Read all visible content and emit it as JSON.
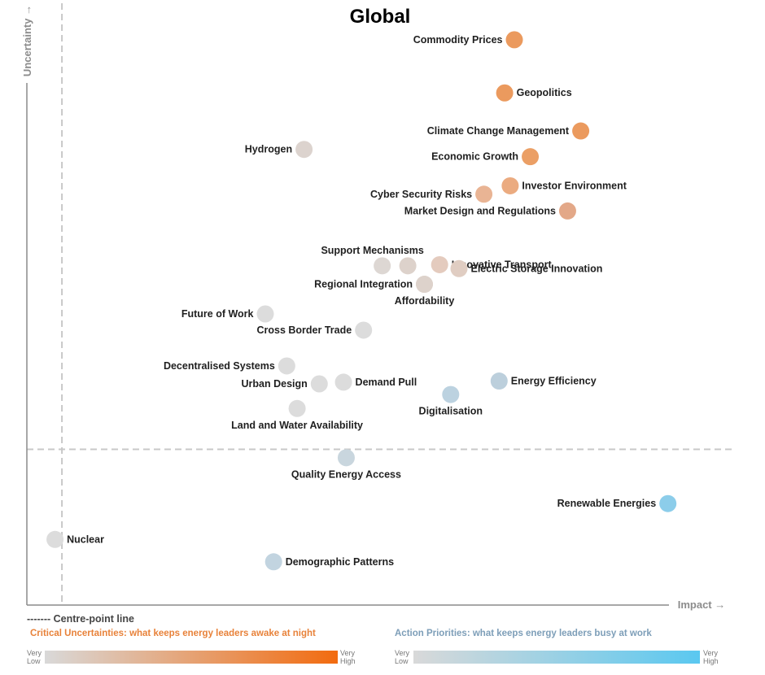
{
  "colors": {
    "critical_accent": "#E8823A",
    "action_accent": "#7D9EB8",
    "axis": "#8c8c8c",
    "centre_line": "#c8c8c8",
    "critical_low": "#d9d9d9",
    "critical_high": "#f26b0f",
    "action_low": "#d9d9d9",
    "action_high": "#5ac8f0"
  },
  "chart_data": {
    "type": "scatter",
    "title": "Global",
    "xlabel": "Impact →",
    "ylabel": "Uncertainty →",
    "xlim": [
      0,
      1
    ],
    "ylim": [
      0,
      1
    ],
    "grid": false,
    "centre_point": {
      "x": 0.066,
      "y": 0.258
    },
    "points": [
      {
        "label": "Commodity Prices",
        "x": 0.72,
        "y": 0.99,
        "color": "#EB9A5E",
        "label_side": "left"
      },
      {
        "label": "Geopolitics",
        "x": 0.706,
        "y": 0.895,
        "color": "#EB9A5E",
        "label_side": "right"
      },
      {
        "label": "Climate Change Management",
        "x": 0.816,
        "y": 0.827,
        "color": "#EB9A5E",
        "label_side": "left"
      },
      {
        "label": "Hydrogen",
        "x": 0.416,
        "y": 0.794,
        "color": "#DCD3CE",
        "label_side": "left"
      },
      {
        "label": "Economic Growth",
        "x": 0.743,
        "y": 0.781,
        "color": "#EB9F65",
        "label_side": "left"
      },
      {
        "label": "Investor Environment",
        "x": 0.714,
        "y": 0.729,
        "color": "#EBAB80",
        "label_side": "right"
      },
      {
        "label": "Cyber Security Risks",
        "x": 0.676,
        "y": 0.714,
        "color": "#E9B494",
        "label_side": "left"
      },
      {
        "label": "Market Design and Regulations",
        "x": 0.797,
        "y": 0.684,
        "color": "#E3A888",
        "label_side": "left"
      },
      {
        "label": "Support Mechanisms",
        "x": 0.529,
        "y": 0.586,
        "color": "#DDD7D3",
        "label_side": "above"
      },
      {
        "label": "",
        "x": 0.566,
        "y": 0.586,
        "color": "#DDD2CB"
      },
      {
        "label": "Innovative Transport",
        "x": 0.612,
        "y": 0.588,
        "color": "#E4CBBE",
        "label_side": "right"
      },
      {
        "label": "Electric Storage Innovation",
        "x": 0.64,
        "y": 0.581,
        "color": "#E0CDC2",
        "label_side": "right"
      },
      {
        "label": "Regional Integration",
        "x": 0.59,
        "y": 0.553,
        "color": "#DDD2CB",
        "label_side": "left"
      },
      {
        "label": "Affordability",
        "x": 0.59,
        "y": 0.553,
        "color": "#DDD2CB",
        "label_side": "below"
      },
      {
        "label": "Future of Work",
        "x": 0.36,
        "y": 0.5,
        "color": "#DCDCDC",
        "label_side": "left"
      },
      {
        "label": "Cross Border Trade",
        "x": 0.502,
        "y": 0.471,
        "color": "#DCDCDC",
        "label_side": "left"
      },
      {
        "label": "Decentralised Systems",
        "x": 0.391,
        "y": 0.407,
        "color": "#DCDCDC",
        "label_side": "left"
      },
      {
        "label": "Energy Efficiency",
        "x": 0.698,
        "y": 0.38,
        "color": "#BCCFDC",
        "label_side": "right"
      },
      {
        "label": "Demand Pull",
        "x": 0.473,
        "y": 0.378,
        "color": "#DCDCDC",
        "label_side": "right"
      },
      {
        "label": "Urban Design",
        "x": 0.438,
        "y": 0.375,
        "color": "#DCDCDC",
        "label_side": "left"
      },
      {
        "label": "Digitalisation",
        "x": 0.628,
        "y": 0.356,
        "color": "#BCD2E0",
        "label_side": "below"
      },
      {
        "label": "Land and Water Availability",
        "x": 0.406,
        "y": 0.331,
        "color": "#DCDCDC",
        "label_side": "below"
      },
      {
        "label": "Quality Energy Access",
        "x": 0.477,
        "y": 0.243,
        "color": "#C9D6DE",
        "label_side": "below"
      },
      {
        "label": "Renewable Energies",
        "x": 0.942,
        "y": 0.161,
        "color": "#8CCDEA",
        "label_side": "left"
      },
      {
        "label": "Nuclear",
        "x": 0.056,
        "y": 0.097,
        "color": "#DCDCDC",
        "label_side": "right"
      },
      {
        "label": "Demographic Patterns",
        "x": 0.372,
        "y": 0.057,
        "color": "#C2D4E0",
        "label_side": "right"
      }
    ]
  },
  "legend": {
    "centre_line_label": "------- Centre-point line",
    "critical_title": "Critical Uncertainties: what keeps energy leaders awake at night",
    "action_title": "Action Priorities: what keeps energy leaders busy at work",
    "scale_low": "Very Low",
    "scale_high": "Very High"
  }
}
